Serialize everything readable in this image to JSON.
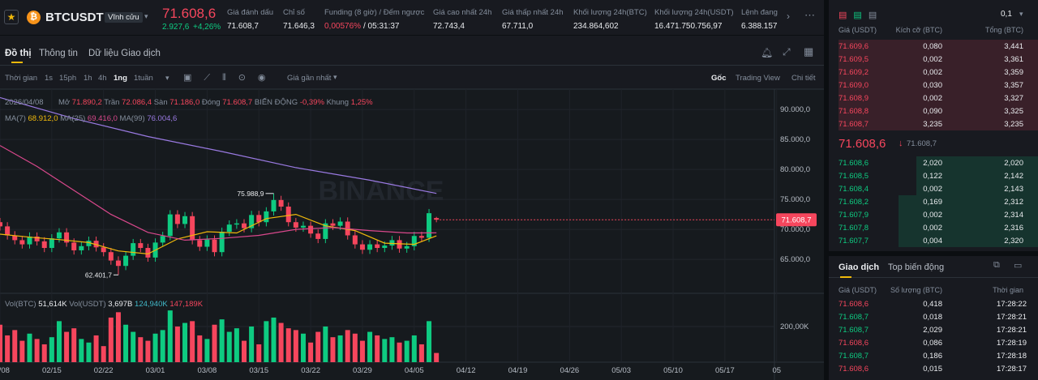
{
  "header": {
    "symbol": "BTCUSDT",
    "tag": "Vĩnh cửu",
    "price": "71.608,6",
    "change": "2.927,6",
    "change_pct": "+4,26%",
    "stats": [
      {
        "label": "Giá đánh dấu",
        "value": "71.608,7"
      },
      {
        "label": "Chỉ số",
        "value": "71.646,3"
      },
      {
        "label": "Funding (8 giờ) / Đếm ngược",
        "value": "0,00576%",
        "extra": "/ 05:31:37"
      },
      {
        "label": "Giá cao nhất 24h",
        "value": "72.743,4"
      },
      {
        "label": "Giá thấp nhất 24h",
        "value": "67.711,0"
      },
      {
        "label": "Khối lượng 24h(BTC)",
        "value": "234.864,602"
      },
      {
        "label": "Khối lượng 24h(USDT)",
        "value": "16.471.750.756,97"
      },
      {
        "label": "Lệnh đang",
        "value": "6.388.157"
      }
    ]
  },
  "tabs": [
    "Đồ thị",
    "Thông tin",
    "Dữ liệu Giao dịch"
  ],
  "toolbar": {
    "intervals": [
      "Thời gian",
      "1s",
      "15ph",
      "1h",
      "4h",
      "1ng",
      "1tuần"
    ],
    "price_type": "Giá gần nhất",
    "views": [
      "Gốc",
      "Trading View",
      "Chi tiết"
    ]
  },
  "legend": {
    "date": "2026/04/08",
    "items": [
      {
        "label": "Mở",
        "value": "71.890,2"
      },
      {
        "label": "Trần",
        "value": "72.086,4"
      },
      {
        "label": "Sàn",
        "value": "71.186,0"
      },
      {
        "label": "Đóng",
        "value": "71.608,7"
      },
      {
        "label": "BIẾN ĐỘNG",
        "value": "-0,39%"
      },
      {
        "label": "Khung",
        "value": "1,25%"
      }
    ],
    "ma": [
      {
        "label": "MA(7)",
        "value": "68.912,0"
      },
      {
        "label": "MA(25)",
        "value": "69.416,0"
      },
      {
        "label": "MA(99)",
        "value": "76.004,6"
      }
    ],
    "vol": [
      {
        "label": "Vol(BTC)",
        "value": "51,614K"
      },
      {
        "label": "Vol(USDT)",
        "value": "3,697B"
      },
      {
        "label": "",
        "value": "124,940K"
      },
      {
        "label": "",
        "value": "147,189K"
      }
    ]
  },
  "chart_data": {
    "type": "candlestick",
    "watermark": "BINANCE",
    "xlim": [
      0,
      104.7
    ],
    "xticks": [
      {
        "value": 0,
        "label": "02/08"
      },
      {
        "value": 7,
        "label": "02/15"
      },
      {
        "value": 14,
        "label": "02/22"
      },
      {
        "value": 21,
        "label": "03/01"
      },
      {
        "value": 28,
        "label": "03/08"
      },
      {
        "value": 35,
        "label": "03/15"
      },
      {
        "value": 42,
        "label": "03/22"
      },
      {
        "value": 49,
        "label": "03/29"
      },
      {
        "value": 56,
        "label": "04/05"
      },
      {
        "value": 63,
        "label": "04/12"
      },
      {
        "value": 70,
        "label": "04/19"
      },
      {
        "value": 77,
        "label": "04/26"
      },
      {
        "value": 84,
        "label": "05/03"
      },
      {
        "value": 91,
        "label": "05/10"
      },
      {
        "value": 98,
        "label": "05/17"
      },
      {
        "value": 105,
        "label": "05"
      }
    ],
    "ylim": [
      59600,
      93000
    ],
    "yticks": [
      {
        "value": 65000,
        "label": "65.000,0"
      },
      {
        "value": 70000,
        "label": "70.000,0"
      },
      {
        "value": 75000,
        "label": "75.000,0"
      },
      {
        "value": 80000,
        "label": "80.000,0"
      },
      {
        "value": 85000,
        "label": "85.000,0"
      },
      {
        "value": 90000,
        "label": "90.000,0"
      }
    ],
    "up_color": "#0ecb81",
    "down_color": "#f6465d",
    "candles": {
      "open": [
        71200,
        70500,
        69000,
        68200,
        67500,
        68800,
        68000,
        66900,
        68500,
        69500,
        67800,
        66500,
        67200,
        68100,
        67000,
        66200,
        64800,
        63900,
        65600,
        67700,
        66900,
        65300,
        67800,
        68900,
        72500,
        70900,
        72200,
        68200,
        67100,
        68300,
        66200,
        69600,
        70800,
        71000,
        70200,
        72400,
        71200,
        73000,
        74900,
        73800,
        71200,
        70300,
        70600,
        69300,
        68400,
        71000,
        70600,
        71300,
        69000,
        67500,
        66600,
        67500,
        66900,
        67300,
        68200,
        66800,
        67200,
        68900,
        68600,
        71890.2
      ],
      "high": [
        71900,
        71200,
        69700,
        68900,
        69500,
        69500,
        68700,
        69200,
        70200,
        70200,
        68500,
        67900,
        68800,
        68800,
        67700,
        66900,
        65500,
        66300,
        68400,
        68400,
        67600,
        68500,
        69600,
        73200,
        73200,
        72900,
        72900,
        68900,
        69000,
        69000,
        70300,
        71500,
        71700,
        71700,
        73100,
        73100,
        73700,
        75988.9,
        75600,
        74500,
        71900,
        71300,
        71300,
        70000,
        71700,
        71700,
        72000,
        72000,
        69700,
        68200,
        68200,
        68200,
        68000,
        68900,
        68900,
        67900,
        69600,
        69600,
        73400,
        72086.4
      ],
      "low": [
        69800,
        68300,
        67500,
        66800,
        66800,
        67300,
        66200,
        66200,
        67800,
        67100,
        65800,
        65800,
        66500,
        66300,
        65500,
        64100,
        62401.7,
        63200,
        64900,
        66200,
        64600,
        64600,
        67100,
        68200,
        70200,
        70200,
        67500,
        66400,
        66400,
        65500,
        65500,
        68900,
        70100,
        69500,
        69500,
        70500,
        70500,
        72300,
        73100,
        70500,
        69600,
        69600,
        68600,
        67700,
        67700,
        69900,
        69900,
        68300,
        66800,
        65900,
        65900,
        66200,
        66200,
        66600,
        66100,
        66100,
        66500,
        67900,
        67900,
        71186
      ],
      "close": [
        70500,
        69000,
        68200,
        67500,
        68800,
        68000,
        66900,
        68500,
        69500,
        67800,
        66500,
        67200,
        68100,
        67000,
        66200,
        64800,
        63900,
        65600,
        67700,
        66900,
        65300,
        67800,
        68900,
        72500,
        70900,
        72200,
        68200,
        67100,
        68300,
        66200,
        69600,
        70800,
        71000,
        70200,
        72400,
        71200,
        73000,
        74900,
        73800,
        71200,
        70300,
        70600,
        69300,
        68400,
        71000,
        70600,
        71300,
        69000,
        67500,
        66600,
        67500,
        66900,
        67300,
        68200,
        66800,
        67200,
        68900,
        68600,
        72700,
        71608.7
      ]
    },
    "annotations": {
      "high": "75.988,9",
      "low": "62.401,7"
    },
    "last_price": {
      "value": 71608.7,
      "label": "71.608,7"
    },
    "ma_lines": [
      {
        "name": "MA(7)",
        "color": "#f0b90b",
        "x": [
          0,
          4,
          8,
          12,
          16,
          20,
          24,
          28,
          32,
          36,
          40,
          44,
          48,
          52,
          56,
          59
        ],
        "values": [
          69200,
          68700,
          68300,
          67800,
          66400,
          65900,
          68400,
          69600,
          69400,
          71800,
          72500,
          70600,
          69800,
          67700,
          67500,
          68912
        ]
      },
      {
        "name": "MA(25)",
        "color": "#d9488c",
        "x": [
          0,
          5,
          10,
          15,
          20,
          25,
          30,
          35,
          40,
          45,
          50,
          55,
          59
        ],
        "values": [
          84000,
          80500,
          76500,
          72500,
          69500,
          68200,
          68500,
          69000,
          70000,
          70300,
          69800,
          69400,
          69416
        ]
      },
      {
        "name": "MA(99)",
        "color": "#9a7ae2",
        "x": [
          0,
          10,
          20,
          30,
          40,
          50,
          59
        ],
        "values": [
          92000,
          88500,
          85500,
          83000,
          80300,
          78200,
          76004.6
        ]
      }
    ],
    "volume": {
      "ylim": [
        0,
        386000
      ],
      "yticks": [
        {
          "value": 200000,
          "label": "200,00K"
        }
      ],
      "values": [
        210000,
        150000,
        180000,
        120000,
        160000,
        130000,
        100000,
        140000,
        230000,
        170000,
        190000,
        130000,
        110000,
        150000,
        90000,
        250000,
        280000,
        210000,
        170000,
        140000,
        120000,
        160000,
        180000,
        290000,
        200000,
        220000,
        230000,
        150000,
        130000,
        210000,
        240000,
        170000,
        190000,
        120000,
        200000,
        100000,
        230000,
        250000,
        220000,
        190000,
        180000,
        160000,
        110000,
        170000,
        200000,
        140000,
        150000,
        180000,
        160000,
        120000,
        170000,
        150000,
        130000,
        140000,
        110000,
        120000,
        150000,
        100000,
        230000,
        51614
      ]
    }
  },
  "orderbook": {
    "depth": "0,1",
    "columns": [
      "Giá (USDT)",
      "Kích cỡ (BTC)",
      "Tổng (BTC)"
    ],
    "asks": [
      [
        "71.609,6",
        "0,080",
        "3,441"
      ],
      [
        "71.609,5",
        "0,002",
        "3,361"
      ],
      [
        "71.609,2",
        "0,002",
        "3,359"
      ],
      [
        "71.609,0",
        "0,030",
        "3,357"
      ],
      [
        "71.608,9",
        "0,002",
        "3,327"
      ],
      [
        "71.608,8",
        "0,090",
        "3,325"
      ],
      [
        "71.608,7",
        "3,235",
        "3,235"
      ]
    ],
    "mid_price": "71.608,6",
    "mark_price": "71.608,7",
    "bids": [
      [
        "71.608,6",
        "2,020",
        "2,020"
      ],
      [
        "71.608,5",
        "0,122",
        "2,142"
      ],
      [
        "71.608,4",
        "0,002",
        "2,143"
      ],
      [
        "71.608,2",
        "0,169",
        "2,312"
      ],
      [
        "71.607,9",
        "0,002",
        "2,314"
      ],
      [
        "71.607,8",
        "0,002",
        "2,316"
      ],
      [
        "71.607,7",
        "0,004",
        "2,320"
      ]
    ]
  },
  "trades": {
    "tabs": [
      "Giao dịch",
      "Top biến động"
    ],
    "columns": [
      "Giá (USDT)",
      "Số lượng (BTC)",
      "Thời gian"
    ],
    "rows": [
      {
        "price": "71.608,6",
        "qty": "0,418",
        "time": "17:28:22",
        "color": "#f6465d"
      },
      {
        "price": "71.608,7",
        "qty": "0,018",
        "time": "17:28:21",
        "color": "#0ecb81"
      },
      {
        "price": "71.608,7",
        "qty": "2,029",
        "time": "17:28:21",
        "color": "#0ecb81"
      },
      {
        "price": "71.608,6",
        "qty": "0,086",
        "time": "17:28:19",
        "color": "#f6465d"
      },
      {
        "price": "71.608,7",
        "qty": "0,186",
        "time": "17:28:18",
        "color": "#0ecb81"
      },
      {
        "price": "71.608,6",
        "qty": "0,015",
        "time": "17:28:17",
        "color": "#f6465d"
      }
    ]
  }
}
